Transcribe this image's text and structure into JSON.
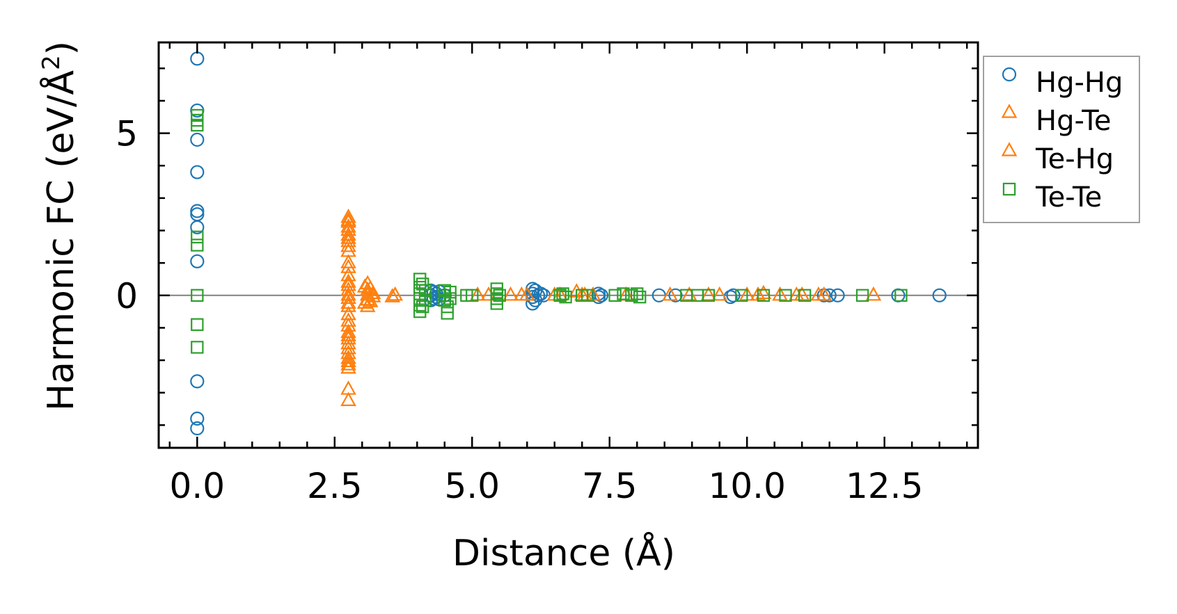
{
  "chart_data": {
    "type": "scatter",
    "xlabel": "Distance (Å)",
    "ylabel_main": "Harmonic FC (eV/Å",
    "ylabel_sup": "2",
    "ylabel_end": ")",
    "xlim": [
      -0.7,
      14.2
    ],
    "ylim": [
      -4.7,
      7.8
    ],
    "x_ticks": [
      0.0,
      2.5,
      5.0,
      7.5,
      10.0,
      12.5
    ],
    "x_tick_labels": [
      "0.0",
      "2.5",
      "5.0",
      "7.5",
      "10.0",
      "12.5"
    ],
    "y_ticks": [
      0,
      5
    ],
    "y_tick_labels": [
      "0",
      "5"
    ],
    "zero_line": true,
    "grid": false,
    "legend_position": "outside-right",
    "series": [
      {
        "name": "Hg-Hg",
        "marker": "circle",
        "color": "#1f77b4",
        "points": [
          [
            0,
            7.3
          ],
          [
            0,
            5.7
          ],
          [
            0,
            4.8
          ],
          [
            0,
            3.8
          ],
          [
            0,
            2.6
          ],
          [
            0,
            2.5
          ],
          [
            0,
            2.1
          ],
          [
            0,
            1.05
          ],
          [
            0,
            -2.65
          ],
          [
            0,
            -3.8
          ],
          [
            0,
            -4.1
          ],
          [
            4.25,
            0.15
          ],
          [
            4.25,
            0.0
          ],
          [
            4.25,
            -0.15
          ],
          [
            4.3,
            0.1
          ],
          [
            4.3,
            -0.1
          ],
          [
            4.35,
            0.05
          ],
          [
            4.35,
            -0.05
          ],
          [
            4.4,
            0.12
          ],
          [
            4.4,
            -0.12
          ],
          [
            4.5,
            0.0
          ],
          [
            6.1,
            0.2
          ],
          [
            6.1,
            0.05
          ],
          [
            6.1,
            -0.05
          ],
          [
            6.1,
            -0.25
          ],
          [
            6.15,
            0.15
          ],
          [
            6.15,
            -0.15
          ],
          [
            6.2,
            0.0
          ],
          [
            6.25,
            0.05
          ],
          [
            6.3,
            0.0
          ],
          [
            7.3,
            0.05
          ],
          [
            7.3,
            -0.05
          ],
          [
            7.35,
            0.0
          ],
          [
            8.4,
            0.0
          ],
          [
            8.7,
            0.0
          ],
          [
            9.7,
            -0.05
          ],
          [
            9.75,
            0.0
          ],
          [
            11.4,
            0.0
          ],
          [
            11.5,
            0.0
          ],
          [
            11.65,
            0.0
          ],
          [
            12.75,
            0.0
          ],
          [
            13.5,
            0.0
          ]
        ]
      },
      {
        "name": "Hg-Te",
        "marker": "triangle",
        "color": "#ff7f0e",
        "points": [
          [
            2.75,
            2.4
          ],
          [
            2.75,
            2.25
          ],
          [
            2.75,
            2.1
          ],
          [
            2.75,
            1.85
          ],
          [
            2.75,
            1.65
          ],
          [
            2.75,
            1.35
          ],
          [
            2.75,
            1.0
          ],
          [
            2.75,
            0.6
          ],
          [
            2.75,
            0.4
          ],
          [
            2.75,
            0.15
          ],
          [
            2.75,
            -0.1
          ],
          [
            2.75,
            -0.35
          ],
          [
            2.75,
            -0.6
          ],
          [
            2.75,
            -0.95
          ],
          [
            2.75,
            -1.15
          ],
          [
            2.75,
            -1.35
          ],
          [
            2.75,
            -1.65
          ],
          [
            2.75,
            -1.95
          ],
          [
            2.75,
            -2.15
          ],
          [
            2.75,
            -2.25
          ],
          [
            3.1,
            0.35
          ],
          [
            3.1,
            0.15
          ],
          [
            3.1,
            0.0
          ],
          [
            3.1,
            -0.15
          ],
          [
            3.1,
            -0.35
          ],
          [
            3.15,
            0.2
          ],
          [
            3.15,
            -0.2
          ],
          [
            3.6,
            0.0
          ],
          [
            3.55,
            -0.05
          ],
          [
            5.1,
            0.0
          ],
          [
            5.7,
            0.0
          ],
          [
            6.0,
            0.0
          ],
          [
            6.5,
            0.0
          ],
          [
            6.9,
            0.1
          ],
          [
            7.0,
            0.0
          ],
          [
            7.8,
            0.0
          ],
          [
            8.95,
            0.0
          ],
          [
            9.3,
            0.0
          ],
          [
            10.0,
            0.0
          ],
          [
            10.3,
            0.05
          ],
          [
            10.6,
            0.0
          ],
          [
            11.0,
            0.0
          ],
          [
            11.3,
            0.0
          ],
          [
            12.3,
            0.0
          ]
        ]
      },
      {
        "name": "Te-Hg",
        "marker": "triangle",
        "color": "#ff7f0e",
        "points": [
          [
            2.75,
            2.3
          ],
          [
            2.75,
            2.0
          ],
          [
            2.75,
            1.75
          ],
          [
            2.75,
            1.5
          ],
          [
            2.75,
            0.85
          ],
          [
            2.75,
            0.3
          ],
          [
            2.75,
            0.0
          ],
          [
            2.75,
            -0.25
          ],
          [
            2.75,
            -0.8
          ],
          [
            2.75,
            -1.25
          ],
          [
            2.75,
            -1.5
          ],
          [
            2.75,
            -1.8
          ],
          [
            2.75,
            -2.05
          ],
          [
            2.75,
            -2.9
          ],
          [
            2.75,
            -3.25
          ],
          [
            3.05,
            0.25
          ],
          [
            3.05,
            -0.25
          ],
          [
            3.2,
            0.05
          ],
          [
            3.2,
            -0.05
          ],
          [
            5.3,
            0.0
          ],
          [
            5.9,
            0.0
          ],
          [
            6.6,
            0.0
          ],
          [
            7.05,
            0.0
          ],
          [
            7.2,
            0.0
          ],
          [
            8.6,
            0.0
          ],
          [
            9.5,
            0.0
          ],
          [
            10.2,
            0.0
          ],
          [
            10.9,
            0.0
          ],
          [
            11.4,
            0.0
          ]
        ]
      },
      {
        "name": "Te-Te",
        "marker": "square",
        "color": "#2ca02c",
        "points": [
          [
            0,
            5.55
          ],
          [
            0,
            5.4
          ],
          [
            0,
            5.25
          ],
          [
            0,
            1.8
          ],
          [
            0,
            1.55
          ],
          [
            0,
            0.0
          ],
          [
            0,
            -0.9
          ],
          [
            0,
            -1.6
          ],
          [
            4.05,
            0.5
          ],
          [
            4.05,
            0.25
          ],
          [
            4.05,
            0.05
          ],
          [
            4.05,
            -0.1
          ],
          [
            4.05,
            -0.3
          ],
          [
            4.05,
            -0.5
          ],
          [
            4.1,
            0.35
          ],
          [
            4.1,
            -0.35
          ],
          [
            4.15,
            0.15
          ],
          [
            4.15,
            -0.15
          ],
          [
            4.5,
            0.15
          ],
          [
            4.5,
            0.0
          ],
          [
            4.5,
            -0.15
          ],
          [
            4.55,
            -0.35
          ],
          [
            4.55,
            -0.55
          ],
          [
            4.6,
            0.1
          ],
          [
            4.6,
            -0.1
          ],
          [
            4.9,
            0.0
          ],
          [
            5.0,
            0.0
          ],
          [
            5.45,
            0.2
          ],
          [
            5.45,
            0.05
          ],
          [
            5.45,
            -0.1
          ],
          [
            5.45,
            -0.25
          ],
          [
            5.5,
            0.0
          ],
          [
            6.6,
            0.0
          ],
          [
            6.65,
            0.05
          ],
          [
            6.7,
            -0.05
          ],
          [
            7.0,
            0.0
          ],
          [
            7.1,
            0.0
          ],
          [
            7.6,
            0.0
          ],
          [
            7.75,
            0.05
          ],
          [
            7.9,
            0.0
          ],
          [
            8.0,
            0.05
          ],
          [
            8.05,
            -0.05
          ],
          [
            8.9,
            0.0
          ],
          [
            9.1,
            0.0
          ],
          [
            9.3,
            0.0
          ],
          [
            9.9,
            0.0
          ],
          [
            10.3,
            0.0
          ],
          [
            10.7,
            0.0
          ],
          [
            11.05,
            0.0
          ],
          [
            12.1,
            0.0
          ],
          [
            12.8,
            0.0
          ]
        ]
      }
    ]
  },
  "legend": {
    "entries": [
      {
        "label": "Hg-Hg",
        "marker": "circle",
        "color": "#1f77b4"
      },
      {
        "label": "Hg-Te",
        "marker": "triangle",
        "color": "#ff7f0e"
      },
      {
        "label": "Te-Hg",
        "marker": "triangle",
        "color": "#ff7f0e"
      },
      {
        "label": "Te-Te",
        "marker": "square",
        "color": "#2ca02c"
      }
    ]
  }
}
